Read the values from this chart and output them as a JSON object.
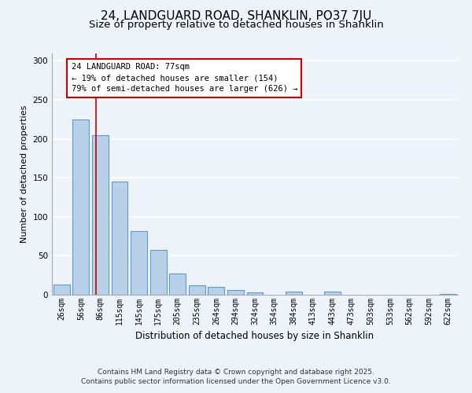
{
  "title": "24, LANDGUARD ROAD, SHANKLIN, PO37 7JU",
  "subtitle": "Size of property relative to detached houses in Shanklin",
  "xlabel": "Distribution of detached houses by size in Shanklin",
  "ylabel": "Number of detached properties",
  "categories": [
    "26sqm",
    "56sqm",
    "86sqm",
    "115sqm",
    "145sqm",
    "175sqm",
    "205sqm",
    "235sqm",
    "264sqm",
    "294sqm",
    "324sqm",
    "354sqm",
    "384sqm",
    "413sqm",
    "443sqm",
    "473sqm",
    "503sqm",
    "533sqm",
    "562sqm",
    "592sqm",
    "622sqm"
  ],
  "values": [
    13,
    225,
    205,
    145,
    82,
    57,
    27,
    12,
    10,
    6,
    3,
    0,
    4,
    0,
    4,
    0,
    0,
    0,
    0,
    0,
    1
  ],
  "bar_color": "#b8d0e8",
  "bar_edge_color": "#5b9bd5",
  "bar_edge_width": 0.8,
  "vline_x": 1.77,
  "vline_color": "#cc0000",
  "ylim": [
    0,
    310
  ],
  "yticks": [
    0,
    50,
    100,
    150,
    200,
    250,
    300
  ],
  "annotation_line1": "24 LANDGUARD ROAD: 77sqm",
  "annotation_line2": "← 19% of detached houses are smaller (154)",
  "annotation_line3": "79% of semi-detached houses are larger (626) →",
  "annotation_box_color": "#cc0000",
  "annotation_box_fill": "#ffffff",
  "footer_line1": "Contains HM Land Registry data © Crown copyright and database right 2025.",
  "footer_line2": "Contains public sector information licensed under the Open Government Licence v3.0.",
  "bg_color": "#eef2f9",
  "grid_color": "#ffffff",
  "title_fontsize": 11,
  "subtitle_fontsize": 9.5,
  "axis_label_fontsize": 8,
  "tick_fontsize": 7,
  "footer_fontsize": 6.5,
  "annotation_fontsize": 7.5
}
